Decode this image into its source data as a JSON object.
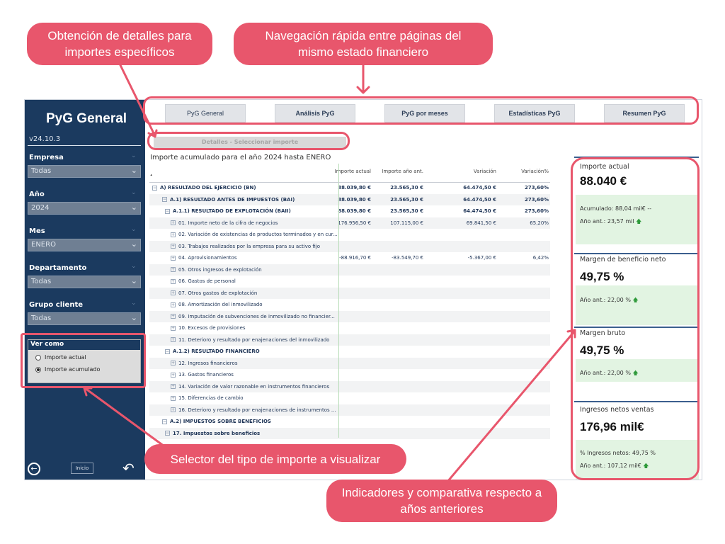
{
  "callouts": {
    "detalles": [
      "Obtención de detalles para",
      "importes específicos"
    ],
    "navegacion": [
      "Navegación rápida entre páginas del",
      "mismo estado financiero"
    ],
    "selector": "Selector del tipo de importe a visualizar",
    "indicadores": [
      "Indicadores y comparativa respecto a",
      "años anteriores"
    ]
  },
  "sidebar": {
    "title": "PyG General",
    "version": "v24.10.3",
    "filters": [
      {
        "label": "Empresa",
        "value": "Todas"
      },
      {
        "label": "Año",
        "value": "2024"
      },
      {
        "label": "Mes",
        "value": "ENERO"
      },
      {
        "label": "Departamento",
        "value": "Todas"
      },
      {
        "label": "Grupo cliente",
        "value": "Todas"
      }
    ],
    "ver_como": {
      "title": "Ver como",
      "options": [
        {
          "label": "Importe actual",
          "selected": false
        },
        {
          "label": "Importe acumulado",
          "selected": true
        }
      ]
    },
    "inicio_label": "Inicio"
  },
  "nav": {
    "tabs": [
      "PyG General",
      "Análisis PyG",
      "PyG por meses",
      "Estadísticas PyG",
      "Resumen PyG"
    ],
    "detalles_button": "Detalles - Seleccionar importe"
  },
  "table": {
    "title": "Importe acumulado para el año 2024 hasta ENERO",
    "headers": [
      "Importe actual",
      "Importe año ant.",
      "Variación",
      "Variación%"
    ],
    "rows": [
      {
        "label": "A) RESULTADO DEL EJERCICIO (BN)",
        "level": 0,
        "bold": true,
        "toggle": "−",
        "values": [
          "88.039,80 €",
          "23.565,30 €",
          "64.474,50 €",
          "273,60%"
        ]
      },
      {
        "label": "A.1) RESULTADO ANTES DE IMPUESTOS (BAI)",
        "level": 1,
        "bold": true,
        "toggle": "−",
        "values": [
          "88.039,80 €",
          "23.565,30 €",
          "64.474,50 €",
          "273,60%"
        ]
      },
      {
        "label": "A.1.1) RESULTADO DE EXPLOTACIÓN (BAII)",
        "level": 2,
        "bold": true,
        "toggle": "−",
        "values": [
          "88.039,80 €",
          "23.565,30 €",
          "64.474,50 €",
          "273,60%"
        ]
      },
      {
        "label": "01. Importe neto de la cifra de negocios",
        "level": 3,
        "bold": false,
        "toggle": "+",
        "values": [
          "176.956,50 €",
          "107.115,00 €",
          "69.841,50 €",
          "65,20%"
        ]
      },
      {
        "label": "02. Variación de existencias de productos terminados y en cur...",
        "level": 3,
        "bold": false,
        "toggle": "+",
        "values": [
          "",
          "",
          "",
          ""
        ]
      },
      {
        "label": "03. Trabajos realizados por la empresa para su activo fijo",
        "level": 3,
        "bold": false,
        "toggle": "+",
        "values": [
          "",
          "",
          "",
          ""
        ]
      },
      {
        "label": "04. Aprovisionamientos",
        "level": 3,
        "bold": false,
        "toggle": "+",
        "values": [
          "-88.916,70 €",
          "-83.549,70 €",
          "-5.367,00 €",
          "6,42%"
        ]
      },
      {
        "label": "05. Otros ingresos de explotación",
        "level": 3,
        "bold": false,
        "toggle": "+",
        "values": [
          "",
          "",
          "",
          ""
        ]
      },
      {
        "label": "06. Gastos de personal",
        "level": 3,
        "bold": false,
        "toggle": "+",
        "values": [
          "",
          "",
          "",
          ""
        ]
      },
      {
        "label": "07. Otros gastos de explotación",
        "level": 3,
        "bold": false,
        "toggle": "+",
        "values": [
          "",
          "",
          "",
          ""
        ]
      },
      {
        "label": "08. Amortización del inmovilizado",
        "level": 3,
        "bold": false,
        "toggle": "+",
        "values": [
          "",
          "",
          "",
          ""
        ]
      },
      {
        "label": "09. Imputación de subvenciones de inmovilizado no financier...",
        "level": 3,
        "bold": false,
        "toggle": "+",
        "values": [
          "",
          "",
          "",
          ""
        ]
      },
      {
        "label": "10. Excesos de provisiones",
        "level": 3,
        "bold": false,
        "toggle": "+",
        "values": [
          "",
          "",
          "",
          ""
        ]
      },
      {
        "label": "11. Deterioro y resultado por enajenaciones del inmovilizado",
        "level": 3,
        "bold": false,
        "toggle": "+",
        "values": [
          "",
          "",
          "",
          ""
        ]
      },
      {
        "label": "A.1.2) RESULTADO FINANCIERO",
        "level": 2,
        "bold": true,
        "toggle": "−",
        "values": [
          "",
          "",
          "",
          ""
        ]
      },
      {
        "label": "12. Ingresos financieros",
        "level": 3,
        "bold": false,
        "toggle": "+",
        "values": [
          "",
          "",
          "",
          ""
        ]
      },
      {
        "label": "13. Gastos financieros",
        "level": 3,
        "bold": false,
        "toggle": "+",
        "values": [
          "",
          "",
          "",
          ""
        ]
      },
      {
        "label": "14. Variación de valor razonable en instrumentos financieros",
        "level": 3,
        "bold": false,
        "toggle": "+",
        "values": [
          "",
          "",
          "",
          ""
        ]
      },
      {
        "label": "15. Diferencias de cambio",
        "level": 3,
        "bold": false,
        "toggle": "+",
        "values": [
          "",
          "",
          "",
          ""
        ]
      },
      {
        "label": "16. Deterioro y resultado por enajenaciones de instrumentos ...",
        "level": 3,
        "bold": false,
        "toggle": "+",
        "values": [
          "",
          "",
          "",
          ""
        ]
      },
      {
        "label": "A.2) IMPUESTOS SOBRE BENEFICIOS",
        "level": 1,
        "bold": true,
        "toggle": "−",
        "values": [
          "",
          "",
          "",
          ""
        ]
      },
      {
        "label": "17. Impuestos sobre beneficios",
        "level": 2,
        "bold": true,
        "toggle": "−",
        "values": [
          "",
          "",
          "",
          ""
        ]
      }
    ]
  },
  "kpis": {
    "importe_actual": {
      "label": "Importe actual",
      "value": "88.040 €",
      "sub1": "Acumulado: 88,04 mil€ --",
      "sub2": "Año ant.: 23,57 mil"
    },
    "margen_neto": {
      "label": "Margen de beneficio neto",
      "value": "49,75 %",
      "sub1": "Año ant.: 22,00 %"
    },
    "margen_bruto": {
      "label": "Margen bruto",
      "value": "49,75 %",
      "sub1": "Año ant.: 22,00 %"
    },
    "ingresos": {
      "label": "Ingresos netos ventas",
      "value": "176,96 mil€",
      "sub1": "% Ingresos netos: 49,75 %",
      "sub2": "Año ant.: 107,12 mil€"
    },
    "up_arrow": "🡅"
  },
  "colors": {
    "accent": "#e8566c",
    "sidebar": "#1b3a5f",
    "kpi_green": "#e2f4e2",
    "up": "#2e9a3a"
  }
}
